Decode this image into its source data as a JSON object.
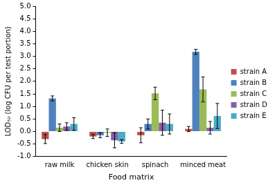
{
  "chart_data": {
    "type": "bar",
    "x_label": "Food matrix",
    "y_label": "LOD₅₀ (log CFU per test portion)",
    "categories": [
      "raw milk",
      "chicken skin",
      "spinach",
      "minced meat"
    ],
    "series": [
      {
        "name": "strain A",
        "color": "#c0504d",
        "values": [
          -0.3,
          -0.2,
          -0.15,
          0.1
        ],
        "errors": [
          0.18,
          0.08,
          0.3,
          0.1
        ]
      },
      {
        "name": "strain B",
        "color": "#4f81bd",
        "values": [
          1.32,
          -0.15,
          0.3,
          3.18
        ],
        "errors": [
          0.1,
          0.1,
          0.2,
          0.1
        ]
      },
      {
        "name": "strain C",
        "color": "#9bbb59",
        "values": [
          0.15,
          -0.05,
          1.52,
          1.68
        ],
        "errors": [
          0.15,
          0.15,
          0.25,
          0.5
        ]
      },
      {
        "name": "strain D",
        "color": "#8064a2",
        "values": [
          0.2,
          -0.35,
          0.35,
          0.15
        ],
        "errors": [
          0.15,
          0.3,
          0.5,
          0.25
        ]
      },
      {
        "name": "strain E",
        "color": "#4bacc6",
        "values": [
          0.3,
          -0.4,
          0.3,
          0.62
        ],
        "errors": [
          0.25,
          0.07,
          0.4,
          0.5
        ]
      }
    ],
    "ylim": [
      -1,
      5
    ],
    "yticks": [
      {
        "value": -1,
        "label": "-1.0"
      },
      {
        "value": -0.5,
        "label": "-0.5"
      },
      {
        "value": 0,
        "label": "0.0"
      },
      {
        "value": 0.5,
        "label": "0.5"
      },
      {
        "value": 1,
        "label": "1.0"
      },
      {
        "value": 1.5,
        "label": "1.5"
      },
      {
        "value": 2,
        "label": "2.0"
      },
      {
        "value": 2.5,
        "label": "2.5"
      },
      {
        "value": 3,
        "label": "3.0"
      },
      {
        "value": 3.5,
        "label": "3.5"
      },
      {
        "value": 4,
        "label": "4.0"
      },
      {
        "value": 4.5,
        "label": "4.5"
      },
      {
        "value": 5,
        "label": "5.0"
      }
    ],
    "grid": false,
    "legend": "right"
  }
}
